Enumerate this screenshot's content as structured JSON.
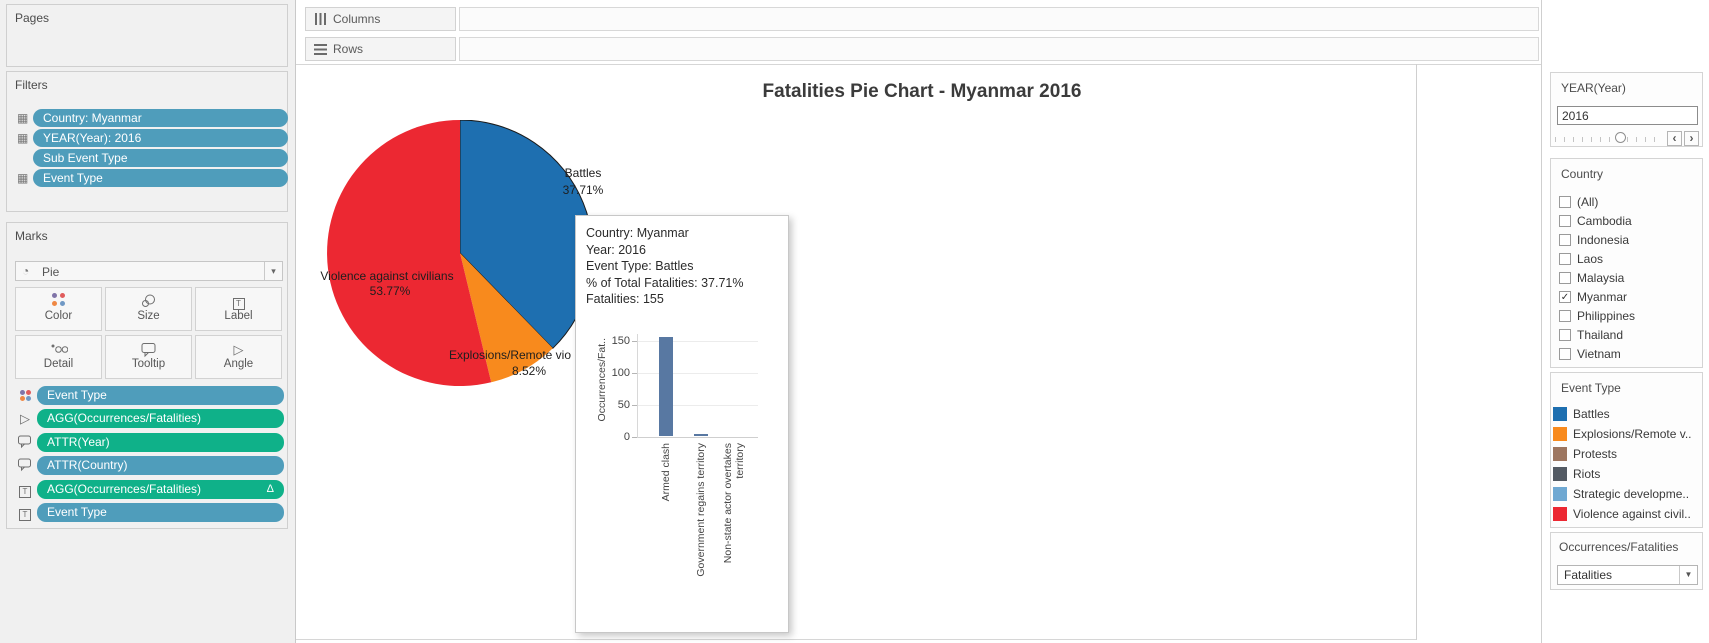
{
  "ui_colors": {
    "pill_blue": "#4F9DBB",
    "pill_green": "#0FB189",
    "battles_blue": "#1E6FB0",
    "explosions_orange": "#F88A1D",
    "violence_red": "#EC2832",
    "protests_brown": "#9D7660",
    "riots_gray": "#535A63",
    "strategic_lightblue": "#6FA8D2",
    "mini_bar_blue": "#5878A2"
  },
  "glyphs": {
    "pie_mark": "◔",
    "caret": "▾",
    "dropdown_caret": "▼",
    "grid": "▦",
    "angle": "▷",
    "label_t": "T",
    "prev": "‹",
    "next": "›"
  },
  "shelves": {
    "columns": "Columns",
    "rows": "Rows"
  },
  "pages": {
    "title": "Pages"
  },
  "filters": {
    "title": "Filters",
    "pills": [
      {
        "label": "Country: Myanmar"
      },
      {
        "label": "YEAR(Year): 2016"
      },
      {
        "label": "Sub Event Type"
      },
      {
        "label": "Event Type"
      }
    ]
  },
  "marks": {
    "title": "Marks",
    "type_label": "Pie",
    "buttons": [
      {
        "label": "Color"
      },
      {
        "label": "Size"
      },
      {
        "label": "Label"
      },
      {
        "label": "Detail"
      },
      {
        "label": "Tooltip"
      },
      {
        "label": "Angle"
      }
    ],
    "pills": [
      {
        "label": "Event Type"
      },
      {
        "label": "AGG(Occurrences/Fatalities)"
      },
      {
        "label": "ATTR(Year)"
      },
      {
        "label": "ATTR(Country)"
      },
      {
        "label": "AGG(Occurrences/Fatalities)",
        "suffix": "Δ"
      },
      {
        "label": "Event Type"
      }
    ]
  },
  "view": {
    "title": "Fatalities Pie Chart - Myanmar 2016",
    "pie_labels": {
      "battles_name": "Battles",
      "battles_pct": "37.71%",
      "violence_name": "Violence against civilians",
      "violence_pct": "53.77%",
      "explosions_name": "Explosions/Remote vio",
      "explosions_pct": "8.52%"
    }
  },
  "tooltip": {
    "lines": [
      "Country: Myanmar",
      "Year: 2016",
      "Event Type: Battles",
      "% of Total Fatalities: 37.71%",
      "Fatalities: 155"
    ],
    "mini_chart": {
      "y_axis_label": "Occurrences/Fat..",
      "y_ticks": [
        "150",
        "100",
        "50",
        "0"
      ],
      "x_labels": [
        "Armed clash",
        "Government regains territory",
        "Non-state actor overtakes\nterritory"
      ]
    }
  },
  "year_filter": {
    "title": "YEAR(Year)",
    "value": "2016"
  },
  "country_filter": {
    "title": "Country",
    "items": [
      {
        "label": "(All)",
        "checked": false,
        "check": ""
      },
      {
        "label": "Cambodia",
        "checked": false,
        "check": ""
      },
      {
        "label": "Indonesia",
        "checked": false,
        "check": ""
      },
      {
        "label": "Laos",
        "checked": false,
        "check": ""
      },
      {
        "label": "Malaysia",
        "checked": false,
        "check": ""
      },
      {
        "label": "Myanmar",
        "checked": true,
        "check": "✓"
      },
      {
        "label": "Philippines",
        "checked": false,
        "check": ""
      },
      {
        "label": "Thailand",
        "checked": false,
        "check": ""
      },
      {
        "label": "Vietnam",
        "checked": false,
        "check": ""
      }
    ]
  },
  "event_legend": {
    "title": "Event Type",
    "items": [
      {
        "label": "Battles",
        "color": "#1E6FB0"
      },
      {
        "label": "Explosions/Remote v..",
        "color": "#F88A1D"
      },
      {
        "label": "Protests",
        "color": "#9D7660"
      },
      {
        "label": "Riots",
        "color": "#535A63"
      },
      {
        "label": "Strategic developme..",
        "color": "#6FA8D2"
      },
      {
        "label": "Violence against civil..",
        "color": "#EC2832"
      }
    ]
  },
  "measure_card": {
    "title": "Occurrences/Fatalities",
    "value": "Fatalities"
  },
  "chart_data": [
    {
      "type": "pie",
      "title": "Fatalities Pie Chart - Myanmar 2016",
      "slices": [
        {
          "label": "Battles",
          "pct": 37.71,
          "fatalities": 155,
          "color": "#1E6FB0"
        },
        {
          "label": "Explosions/Remote violence",
          "pct": 8.52,
          "color": "#F88A1D"
        },
        {
          "label": "Violence against civilians",
          "pct": 53.77,
          "color": "#EC2832"
        }
      ],
      "start_angle_deg": 0,
      "direction": "clockwise"
    },
    {
      "type": "bar",
      "title": "",
      "ylabel": "Occurrences/Fat..",
      "categories": [
        "Armed clash",
        "Government regains territory",
        "Non-state actor overtakes territory"
      ],
      "values": [
        155,
        2,
        0
      ],
      "yticks": [
        0,
        50,
        100,
        150
      ],
      "ylim": [
        0,
        155
      ],
      "grid": true,
      "bar_color": "#5878A2"
    }
  ]
}
